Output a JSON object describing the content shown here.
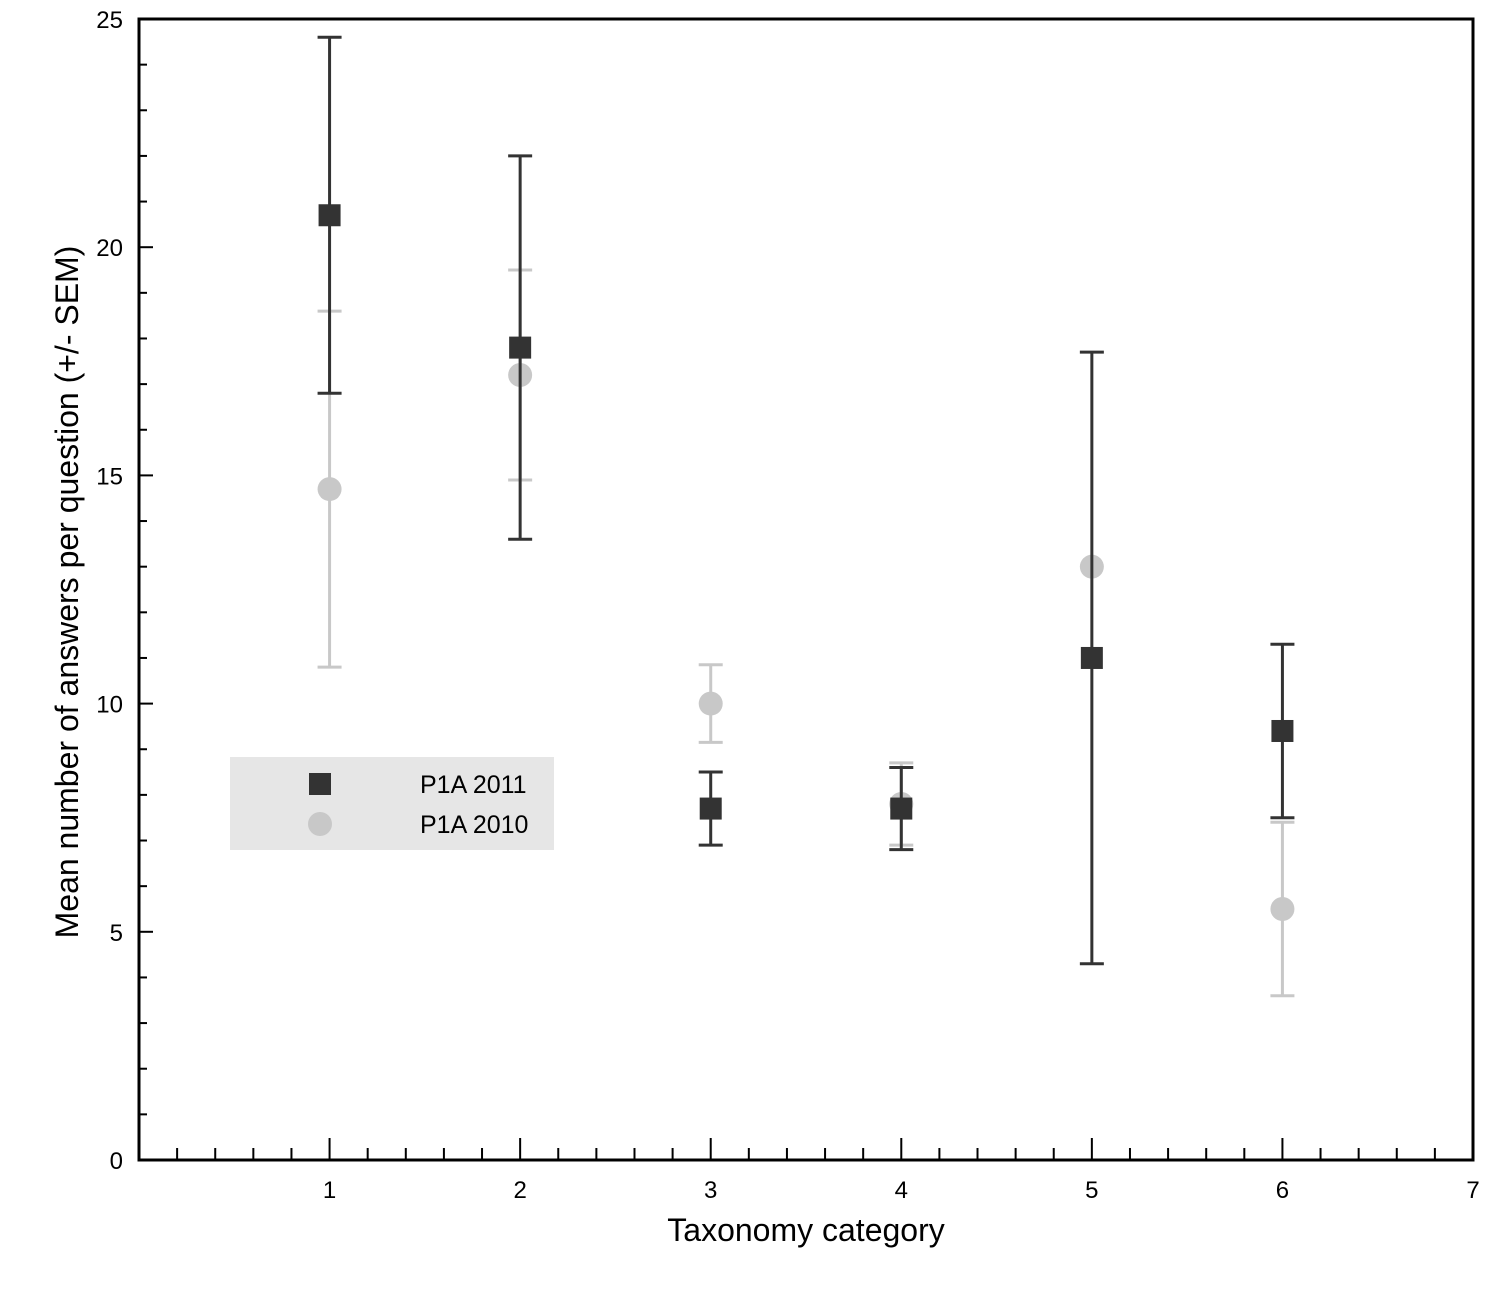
{
  "chart_data": {
    "type": "scatter",
    "xlabel": "Taxonomy category",
    "ylabel": "Mean number of answers per question (+/- SEM)",
    "xlim": [
      0,
      7
    ],
    "ylim": [
      0,
      25
    ],
    "x_ticks": [
      1,
      2,
      3,
      4,
      5,
      6,
      7
    ],
    "y_ticks": [
      0,
      5,
      10,
      15,
      20,
      25
    ],
    "grid": false,
    "legend_position": "left-middle",
    "series": [
      {
        "name": "P1A 2011",
        "marker": "square",
        "color": "#333333",
        "points": [
          {
            "x": 1,
            "y": 20.7,
            "low": 16.8,
            "high": 24.6
          },
          {
            "x": 2,
            "y": 17.8,
            "low": 13.6,
            "high": 22.0
          },
          {
            "x": 3,
            "y": 7.7,
            "low": 6.9,
            "high": 8.5
          },
          {
            "x": 4,
            "y": 7.7,
            "low": 6.8,
            "high": 8.6
          },
          {
            "x": 5,
            "y": 11.0,
            "low": 4.3,
            "high": 17.7
          },
          {
            "x": 6,
            "y": 9.4,
            "low": 7.5,
            "high": 11.3
          }
        ]
      },
      {
        "name": "P1A 2010",
        "marker": "circle",
        "color": "#c8c8c8",
        "points": [
          {
            "x": 1,
            "y": 14.7,
            "low": 10.8,
            "high": 18.6
          },
          {
            "x": 2,
            "y": 17.2,
            "low": 14.9,
            "high": 19.5
          },
          {
            "x": 3,
            "y": 10.0,
            "low": 9.15,
            "high": 10.85
          },
          {
            "x": 4,
            "y": 7.8,
            "low": 6.9,
            "high": 8.7
          },
          {
            "x": 5,
            "y": 13.0,
            "low": 13.0,
            "high": 13.0
          },
          {
            "x": 6,
            "y": 5.5,
            "low": 3.6,
            "high": 7.4
          }
        ]
      }
    ]
  }
}
